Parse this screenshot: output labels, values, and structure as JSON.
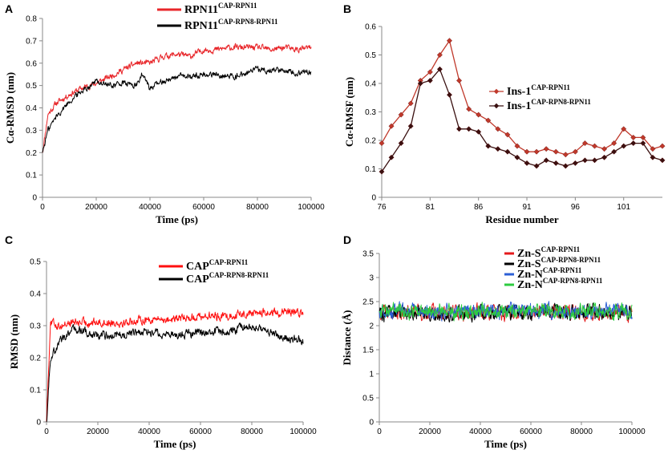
{
  "figure": {
    "panels": [
      {
        "label": "A",
        "chart_data": {
          "type": "line",
          "xlabel": "Time (ps)",
          "ylabel": "Cα-RMSD (nm)",
          "xlim": [
            0,
            100000
          ],
          "ylim": [
            0,
            0.8
          ],
          "x_ticks": [
            "0",
            "20000",
            "40000",
            "60000",
            "80000",
            "100000"
          ],
          "y_ticks": [
            "0",
            "0.1",
            "0.2",
            "0.3",
            "0.4",
            "0.5",
            "0.6",
            "0.7",
            "0.8"
          ],
          "series": [
            {
              "name": "RPN11",
              "superscript": "CAP-RPN11",
              "color": "#e8262a",
              "x": [
                0,
                2000,
                5000,
                10000,
                15000,
                20000,
                25000,
                30000,
                35000,
                40000,
                45000,
                50000,
                55000,
                60000,
                65000,
                70000,
                75000,
                80000,
                85000,
                90000,
                95000,
                100000
              ],
              "y": [
                0.2,
                0.37,
                0.42,
                0.46,
                0.49,
                0.51,
                0.54,
                0.57,
                0.6,
                0.6,
                0.63,
                0.64,
                0.63,
                0.66,
                0.66,
                0.67,
                0.67,
                0.67,
                0.66,
                0.67,
                0.66,
                0.67
              ]
            },
            {
              "name": "RPN11",
              "superscript": "CAP-RPN8-RPN11",
              "color": "#000000",
              "x": [
                0,
                2000,
                5000,
                10000,
                15000,
                20000,
                25000,
                30000,
                35000,
                37000,
                40000,
                45000,
                50000,
                55000,
                60000,
                65000,
                70000,
                75000,
                80000,
                85000,
                90000,
                95000,
                100000
              ],
              "y": [
                0.2,
                0.3,
                0.36,
                0.43,
                0.48,
                0.52,
                0.5,
                0.51,
                0.5,
                0.55,
                0.49,
                0.52,
                0.54,
                0.54,
                0.55,
                0.55,
                0.54,
                0.55,
                0.57,
                0.57,
                0.57,
                0.56,
                0.56
              ]
            }
          ]
        }
      },
      {
        "label": "B",
        "chart_data": {
          "type": "line",
          "xlabel": "Residue number",
          "ylabel": "Cα-RMSF (nm)",
          "xlim": [
            76,
            105
          ],
          "ylim": [
            0,
            0.6
          ],
          "x_ticks": [
            "76",
            "81",
            "86",
            "91",
            "96",
            "101"
          ],
          "y_ticks": [
            "0",
            "0.1",
            "0.2",
            "0.3",
            "0.4",
            "0.5",
            "0.6"
          ],
          "series": [
            {
              "name": "Ins-1",
              "superscript": "CAP-RPN11",
              "color": "#c0392b",
              "x": [
                76,
                77,
                78,
                79,
                80,
                81,
                82,
                83,
                84,
                85,
                86,
                87,
                88,
                89,
                90,
                91,
                92,
                93,
                94,
                95,
                96,
                97,
                98,
                99,
                100,
                101,
                102,
                103,
                104,
                105
              ],
              "y": [
                0.19,
                0.25,
                0.29,
                0.33,
                0.41,
                0.44,
                0.5,
                0.55,
                0.41,
                0.31,
                0.29,
                0.27,
                0.24,
                0.22,
                0.18,
                0.16,
                0.16,
                0.17,
                0.16,
                0.15,
                0.16,
                0.19,
                0.18,
                0.17,
                0.19,
                0.24,
                0.21,
                0.21,
                0.17,
                0.18
              ]
            },
            {
              "name": "Ins-1",
              "superscript": "CAP-RPN8-RPN11",
              "color": "#3a1010",
              "x": [
                76,
                77,
                78,
                79,
                80,
                81,
                82,
                83,
                84,
                85,
                86,
                87,
                88,
                89,
                90,
                91,
                92,
                93,
                94,
                95,
                96,
                97,
                98,
                99,
                100,
                101,
                102,
                103,
                104,
                105
              ],
              "y": [
                0.09,
                0.14,
                0.19,
                0.25,
                0.4,
                0.41,
                0.45,
                0.36,
                0.24,
                0.24,
                0.23,
                0.18,
                0.17,
                0.16,
                0.14,
                0.12,
                0.11,
                0.13,
                0.12,
                0.11,
                0.12,
                0.13,
                0.13,
                0.14,
                0.16,
                0.18,
                0.19,
                0.19,
                0.14,
                0.13
              ]
            }
          ]
        }
      },
      {
        "label": "C",
        "chart_data": {
          "type": "line",
          "xlabel": "Time (ps)",
          "ylabel": "RMSD (nm)",
          "xlim": [
            0,
            100000
          ],
          "ylim": [
            0,
            0.5
          ],
          "x_ticks": [
            "0",
            "20000",
            "40000",
            "60000",
            "80000",
            "100000"
          ],
          "y_ticks": [
            "0",
            "0.1",
            "0.2",
            "0.3",
            "0.4",
            "0.5"
          ],
          "series": [
            {
              "name": "CAP",
              "superscript": "CAP-RPN11",
              "color": "#ff1010",
              "x": [
                0,
                1500,
                5000,
                10000,
                20000,
                30000,
                40000,
                50000,
                60000,
                70000,
                80000,
                90000,
                100000
              ],
              "y": [
                0.0,
                0.31,
                0.3,
                0.31,
                0.31,
                0.31,
                0.32,
                0.32,
                0.33,
                0.33,
                0.34,
                0.34,
                0.34
              ]
            },
            {
              "name": "CAP",
              "superscript": "CAP-RPN8-RPN11",
              "color": "#000000",
              "x": [
                0,
                1500,
                5000,
                10000,
                20000,
                30000,
                40000,
                50000,
                60000,
                70000,
                80000,
                90000,
                100000
              ],
              "y": [
                0.0,
                0.2,
                0.25,
                0.29,
                0.27,
                0.27,
                0.28,
                0.27,
                0.28,
                0.28,
                0.3,
                0.27,
                0.25
              ]
            }
          ]
        }
      },
      {
        "label": "D",
        "chart_data": {
          "type": "line",
          "xlabel": "Time (ps)",
          "ylabel": "Distance (Å)",
          "xlim": [
            0,
            100000
          ],
          "ylim": [
            0,
            3.5
          ],
          "x_ticks": [
            "0",
            "20000",
            "40000",
            "60000",
            "80000",
            "100000"
          ],
          "y_ticks": [
            "0",
            "0.5",
            "1",
            "1.5",
            "2",
            "2.5",
            "3",
            "3.5"
          ],
          "series": [
            {
              "name": "Zn-S",
              "superscript": "CAP-RPN11",
              "color": "#e41a1c",
              "x": [
                0,
                100000
              ],
              "y": [
                2.27,
                2.27
              ]
            },
            {
              "name": "Zn-S",
              "superscript": "CAP-RPN8-RPN11",
              "color": "#000000",
              "x": [
                0,
                100000
              ],
              "y": [
                2.27,
                2.27
              ]
            },
            {
              "name": "Zn-N",
              "superscript": "CAP-RPN11",
              "color": "#2c5fd6",
              "x": [
                0,
                100000
              ],
              "y": [
                2.3,
                2.3
              ]
            },
            {
              "name": "Zn-N",
              "superscript": "CAP-RPN8-RPN11",
              "color": "#2ecc40",
              "x": [
                0,
                100000
              ],
              "y": [
                2.3,
                2.3
              ]
            }
          ]
        }
      }
    ]
  }
}
